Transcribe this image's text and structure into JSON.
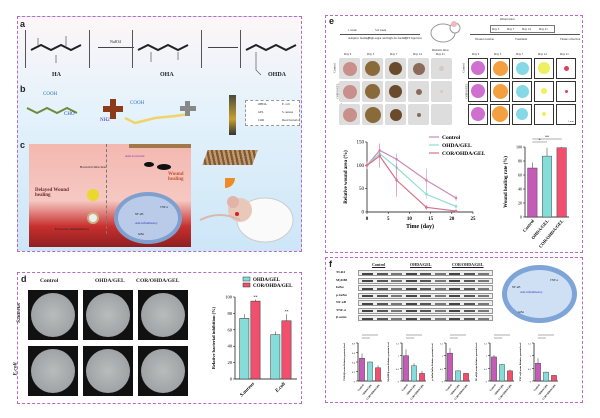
{
  "panels": {
    "a": "a",
    "b": "b",
    "c": "c",
    "d": "d",
    "e": "e",
    "f": "f"
  },
  "panel_a": {
    "reagent": "NaIO4",
    "compounds": [
      "HA",
      "OHA",
      "OHDA"
    ]
  },
  "panel_b": {
    "groups": [
      "COOH",
      "CHO",
      "NH2",
      "COOH"
    ],
    "legend": [
      "OHDA",
      "E. coli",
      "GEL",
      "S. aureus",
      "COR",
      "Dead bacteria"
    ]
  },
  "panel_c": {
    "delayed": "Delayed Wound healing",
    "bacterial": "Bacterial Infection",
    "excessive": "Excessive Inflammatory",
    "antibacterial": "Anti-bacterial",
    "healing": "Wound healing",
    "anti_inflammatory": "Anti-inflammatory",
    "tnf": "TNF-α",
    "nfkb": "NF-κB",
    "ikba": "IκBα"
  },
  "panel_e": {
    "timeline": {
      "week1": "1 week",
      "week1_desc": "Adaptive feeding",
      "week5": "5-6 week",
      "week5_desc": "High-sugar and high-fat feeding",
      "stz": "STZ Injection",
      "mouse": "Diabetic mice",
      "observation": "Observation",
      "days": [
        "Day 3",
        "Day 7",
        "Day 14",
        "Day 21"
      ],
      "wound": "Wound creation",
      "treatment": "Treatment",
      "tissue": "Tissue collection"
    },
    "photo_days": [
      "Day 0",
      "Day 3",
      "Day 7",
      "Day 14",
      "Day 21"
    ],
    "rows": [
      "Control",
      "OHDA/GEL",
      "COR/OHDA/GEL"
    ],
    "scale": "5 mm"
  },
  "panel_d": {
    "cols": [
      "Control",
      "OHDA/GEL",
      "COR/OHDA/GEL"
    ],
    "rows": [
      "S.aureus",
      "E.coli"
    ]
  },
  "panel_f": {
    "groups": [
      "Control",
      "OHDA/GEL",
      "COR/OHDA/GEL"
    ],
    "bands": [
      "TLR4",
      "MyD88",
      "IκBα",
      "p-IκBα",
      "NF-κB",
      "TNF-α",
      "β-actin"
    ],
    "cell": {
      "tnf": "TNF-α",
      "nfkb": "NF-κB",
      "ikba": "IκBα",
      "anti": "Anti-inflammatory"
    }
  },
  "colors": {
    "control": "#c45bb7",
    "ohda": "#86dcd8",
    "cor": "#f0506e",
    "control_line": "#c98ab9",
    "ohda_line": "#8fdcd2",
    "cor_line": "#d9708a"
  },
  "chart_data": [
    {
      "id": "wound-area",
      "type": "line",
      "xlabel": "Time (day)",
      "ylabel": "Relative wound area (%)",
      "xlim": [
        0,
        25
      ],
      "ylim": [
        0,
        150
      ],
      "xticks": [
        0,
        5,
        10,
        15,
        20,
        25
      ],
      "yticks": [
        0,
        50,
        100,
        150
      ],
      "legend": "top-right",
      "x": [
        0,
        3,
        7,
        14,
        21
      ],
      "series": [
        {
          "name": "Control",
          "values": [
            100,
            132,
            113,
            68,
            30
          ],
          "err": [
            8,
            15,
            12,
            25,
            6
          ]
        },
        {
          "name": "OHDA/GEL",
          "values": [
            100,
            125,
            95,
            38,
            12
          ],
          "err": [
            8,
            12,
            15,
            10,
            5
          ]
        },
        {
          "name": "COR/OHDA/GEL",
          "values": [
            100,
            120,
            68,
            10,
            2
          ],
          "err": [
            8,
            25,
            35,
            5,
            3
          ]
        }
      ]
    },
    {
      "id": "healing-rate",
      "type": "bar",
      "ylabel": "Wound healing rate (%)",
      "ylim": [
        0,
        100
      ],
      "yticks": [
        0,
        20,
        40,
        60,
        80,
        100
      ],
      "categories": [
        "Control",
        "OHDA/GEL",
        "COR/OHDA/GEL"
      ],
      "values": [
        70,
        87,
        99
      ],
      "err": [
        8,
        12,
        1
      ],
      "sig": [
        "*",
        "**"
      ]
    },
    {
      "id": "bacterial-inhibition",
      "type": "bar",
      "ylabel": "Relative bacterial inhibition (%)",
      "ylim": [
        0,
        100
      ],
      "yticks": [
        0,
        20,
        40,
        60,
        80,
        100
      ],
      "categories": [
        "S.aureus",
        "E.coli"
      ],
      "legend": "top",
      "series": [
        {
          "name": "OHDA/GEL",
          "values": [
            74,
            54
          ],
          "err": [
            5,
            4
          ]
        },
        {
          "name": "COR/OHDA/GEL",
          "values": [
            95,
            71
          ],
          "err": [
            2,
            8
          ]
        }
      ],
      "sig": [
        "**",
        "**"
      ]
    },
    {
      "id": "tlr4",
      "type": "bar",
      "ylabel": "TLR4/β-actin Relative protein level",
      "ylim": [
        0,
        0.8
      ],
      "yticks": [
        0,
        0.2,
        0.4,
        0.6,
        0.8
      ],
      "categories": [
        "Control",
        "OHDA/GEL",
        "COR/OHDA/GEL"
      ],
      "values": [
        0.48,
        0.4,
        0.28
      ],
      "err": [
        0.1,
        0.01,
        0.05
      ]
    },
    {
      "id": "myd88",
      "type": "bar",
      "ylabel": "MyD88/β-actin Relative protein level",
      "ylim": [
        0,
        1.5
      ],
      "yticks": [
        0,
        0.5,
        1.0,
        1.5
      ],
      "categories": [
        "Control",
        "OHDA/GEL",
        "COR/OHDA/GEL"
      ],
      "values": [
        1.0,
        0.6,
        0.3
      ],
      "err": [
        0.25,
        0.1,
        0.1
      ]
    },
    {
      "id": "p-ikba",
      "type": "bar",
      "ylabel": "p-IκBα/IκBα Relative protein level",
      "ylim": [
        0,
        1.5
      ],
      "yticks": [
        0,
        0.5,
        1.0,
        1.5
      ],
      "categories": [
        "Control",
        "OHDA/GEL",
        "COR/OHDA/GEL"
      ],
      "values": [
        1.1,
        0.4,
        0.3
      ],
      "err": [
        0.2,
        0.02,
        0.02
      ]
    },
    {
      "id": "nfkb",
      "type": "bar",
      "ylabel": "NF-κB/β-actin Relative protein level",
      "ylim": [
        0,
        1.5
      ],
      "yticks": [
        0,
        0.5,
        1.0,
        1.5
      ],
      "categories": [
        "Control",
        "OHDA/GEL",
        "COR/OHDA/GEL"
      ],
      "values": [
        0.95,
        0.65,
        0.4
      ],
      "err": [
        0.08,
        0.02,
        0.05
      ]
    },
    {
      "id": "tnfa",
      "type": "bar",
      "ylabel": "TNF-α/β-actin Relative protein level",
      "ylim": [
        0,
        1.5
      ],
      "yticks": [
        0,
        0.5,
        1.0,
        1.5
      ],
      "categories": [
        "Control",
        "OHDA/GEL",
        "COR/OHDA/GEL"
      ],
      "values": [
        0.7,
        0.35,
        0.22
      ],
      "err": [
        0.2,
        0.02,
        0.02
      ]
    }
  ]
}
